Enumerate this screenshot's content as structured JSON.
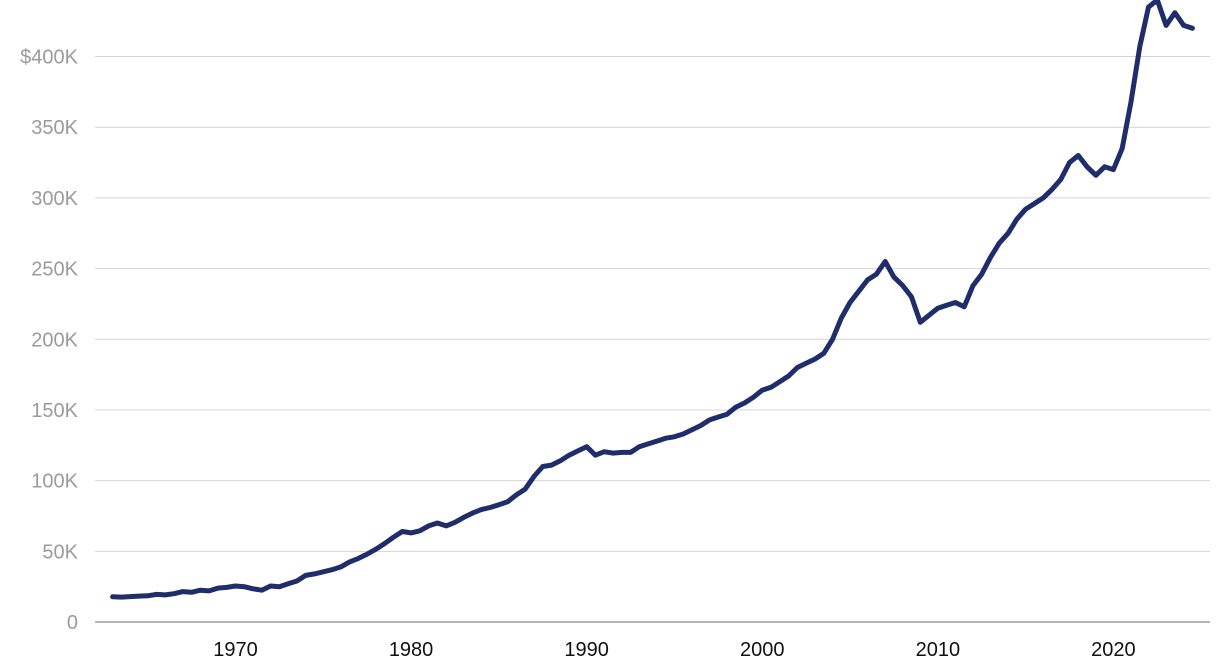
{
  "chart_data": {
    "type": "line",
    "title": "",
    "xlabel": "",
    "ylabel": "",
    "xlim": [
      1962,
      2025.5
    ],
    "ylim": [
      0,
      440000
    ],
    "grid": "horizontal",
    "legend": "none",
    "line_color": "#1f2d6b",
    "y_ticks": [
      {
        "value": 0,
        "label": "0"
      },
      {
        "value": 50000,
        "label": "50K"
      },
      {
        "value": 100000,
        "label": "100K"
      },
      {
        "value": 150000,
        "label": "150K"
      },
      {
        "value": 200000,
        "label": "200K"
      },
      {
        "value": 250000,
        "label": "250K"
      },
      {
        "value": 300000,
        "label": "300K"
      },
      {
        "value": 350000,
        "label": "350K"
      },
      {
        "value": 400000,
        "label": "$400K"
      }
    ],
    "x_ticks": [
      {
        "value": 1970,
        "label": "1970"
      },
      {
        "value": 1980,
        "label": "1980"
      },
      {
        "value": 1990,
        "label": "1990"
      },
      {
        "value": 2000,
        "label": "2000"
      },
      {
        "value": 2010,
        "label": "2010"
      },
      {
        "value": 2020,
        "label": "2020"
      }
    ],
    "series": [
      {
        "points": [
          [
            1963.0,
            17800
          ],
          [
            1963.5,
            17600
          ],
          [
            1964.0,
            18000
          ],
          [
            1964.5,
            18300
          ],
          [
            1965.0,
            18500
          ],
          [
            1965.5,
            19500
          ],
          [
            1966.0,
            19200
          ],
          [
            1966.5,
            20000
          ],
          [
            1967.0,
            21500
          ],
          [
            1967.5,
            21000
          ],
          [
            1968.0,
            22500
          ],
          [
            1968.5,
            22000
          ],
          [
            1969.0,
            24000
          ],
          [
            1969.5,
            24500
          ],
          [
            1970.0,
            25500
          ],
          [
            1970.5,
            25000
          ],
          [
            1971.0,
            23500
          ],
          [
            1971.5,
            22500
          ],
          [
            1972.0,
            25500
          ],
          [
            1972.5,
            25000
          ],
          [
            1973.0,
            27000
          ],
          [
            1973.5,
            29000
          ],
          [
            1974.0,
            33000
          ],
          [
            1974.5,
            34000
          ],
          [
            1975.0,
            35500
          ],
          [
            1975.5,
            37000
          ],
          [
            1976.0,
            39000
          ],
          [
            1976.5,
            42500
          ],
          [
            1977.0,
            45000
          ],
          [
            1977.5,
            48000
          ],
          [
            1978.0,
            51500
          ],
          [
            1978.5,
            55500
          ],
          [
            1979.0,
            60000
          ],
          [
            1979.5,
            64000
          ],
          [
            1980.0,
            63000
          ],
          [
            1980.5,
            64500
          ],
          [
            1981.0,
            68000
          ],
          [
            1981.5,
            70000
          ],
          [
            1982.0,
            68000
          ],
          [
            1982.5,
            70500
          ],
          [
            1983.0,
            74000
          ],
          [
            1983.5,
            77000
          ],
          [
            1984.0,
            79500
          ],
          [
            1984.5,
            81000
          ],
          [
            1985.0,
            83000
          ],
          [
            1985.5,
            85000
          ],
          [
            1986.0,
            90000
          ],
          [
            1986.5,
            94000
          ],
          [
            1987.0,
            103000
          ],
          [
            1987.5,
            110000
          ],
          [
            1988.0,
            111000
          ],
          [
            1988.5,
            114000
          ],
          [
            1989.0,
            118000
          ],
          [
            1989.5,
            121000
          ],
          [
            1990.0,
            124000
          ],
          [
            1990.5,
            118000
          ],
          [
            1991.0,
            120500
          ],
          [
            1991.5,
            119500
          ],
          [
            1992.0,
            120000
          ],
          [
            1992.5,
            120000
          ],
          [
            1993.0,
            124000
          ],
          [
            1993.5,
            126000
          ],
          [
            1994.0,
            128000
          ],
          [
            1994.5,
            130000
          ],
          [
            1995.0,
            131000
          ],
          [
            1995.5,
            133000
          ],
          [
            1996.0,
            136000
          ],
          [
            1996.5,
            139000
          ],
          [
            1997.0,
            143000
          ],
          [
            1997.5,
            145000
          ],
          [
            1998.0,
            147000
          ],
          [
            1998.5,
            152000
          ],
          [
            1999.0,
            155000
          ],
          [
            1999.5,
            159000
          ],
          [
            2000.0,
            164000
          ],
          [
            2000.5,
            166000
          ],
          [
            2001.0,
            170000
          ],
          [
            2001.5,
            174000
          ],
          [
            2002.0,
            180000
          ],
          [
            2002.5,
            183000
          ],
          [
            2003.0,
            186000
          ],
          [
            2003.5,
            190000
          ],
          [
            2004.0,
            200000
          ],
          [
            2004.5,
            215000
          ],
          [
            2005.0,
            226000
          ],
          [
            2005.5,
            234000
          ],
          [
            2006.0,
            242000
          ],
          [
            2006.5,
            246000
          ],
          [
            2007.0,
            255000
          ],
          [
            2007.5,
            244000
          ],
          [
            2008.0,
            238000
          ],
          [
            2008.5,
            230000
          ],
          [
            2009.0,
            212000
          ],
          [
            2009.5,
            217000
          ],
          [
            2010.0,
            222000
          ],
          [
            2010.5,
            224000
          ],
          [
            2011.0,
            226000
          ],
          [
            2011.5,
            223000
          ],
          [
            2012.0,
            238000
          ],
          [
            2012.5,
            246000
          ],
          [
            2013.0,
            258000
          ],
          [
            2013.5,
            268000
          ],
          [
            2014.0,
            275000
          ],
          [
            2014.5,
            285000
          ],
          [
            2015.0,
            292000
          ],
          [
            2015.5,
            296000
          ],
          [
            2016.0,
            300000
          ],
          [
            2016.5,
            306000
          ],
          [
            2017.0,
            313000
          ],
          [
            2017.5,
            325000
          ],
          [
            2018.0,
            330000
          ],
          [
            2018.5,
            322000
          ],
          [
            2019.0,
            316000
          ],
          [
            2019.5,
            322000
          ],
          [
            2020.0,
            320000
          ],
          [
            2020.5,
            335000
          ],
          [
            2021.0,
            368000
          ],
          [
            2021.5,
            407000
          ],
          [
            2022.0,
            435000
          ],
          [
            2022.5,
            440000
          ],
          [
            2023.0,
            422000
          ],
          [
            2023.5,
            431000
          ],
          [
            2024.0,
            422000
          ],
          [
            2024.5,
            420000
          ]
        ]
      }
    ]
  }
}
